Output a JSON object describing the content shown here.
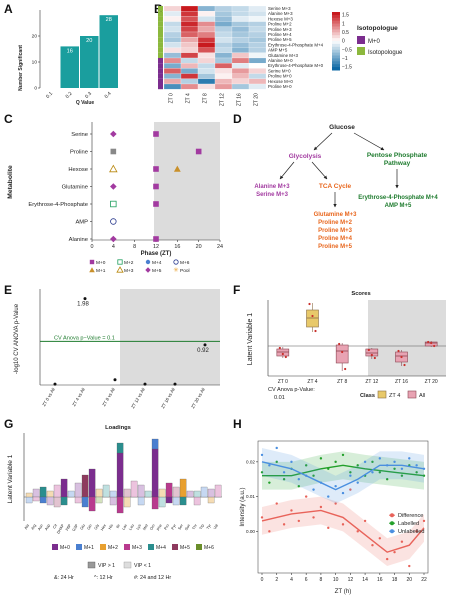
{
  "panels": {
    "A": {
      "label": "A"
    },
    "B": {
      "label": "B"
    },
    "C": {
      "label": "C"
    },
    "D": {
      "label": "D"
    },
    "E": {
      "label": "E"
    },
    "F": {
      "label": "F"
    },
    "G": {
      "label": "G"
    },
    "H": {
      "label": "H"
    }
  },
  "panelA": {
    "ylabel": "Number Significant",
    "xlabel": "Q Value",
    "categories": [
      "0.1",
      "0.2",
      "0.3",
      "0.4"
    ],
    "values": [
      0,
      16,
      20,
      28
    ],
    "bar_labels": [
      "",
      "16",
      "20",
      "28"
    ],
    "ylim": [
      0,
      30
    ],
    "yticks": [
      "0",
      "10",
      "20"
    ],
    "bar_color": "#1a9e9e"
  },
  "panelB": {
    "xlabels": [
      "ZT 0",
      "ZT 4",
      "ZT 8",
      "ZT 12",
      "ZT 16",
      "ZT 20"
    ],
    "rows": [
      "Serine M+3",
      "Alanine M+3",
      "Hexose M+3",
      "Proline M+2",
      "Proline M+3",
      "Proline M+4",
      "Proline M+5",
      "Erythrose-4-Phosphate M+4",
      "AMP M+5",
      "Glutamine M+3",
      "Alanine M+0",
      "Erythrose-4-Phosphate M+0",
      "Serine M+0",
      "Proline M+0",
      "Hexose M+0",
      "Proline M+0"
    ],
    "legend_title": "Isotopologue",
    "legend_items": [
      {
        "label": "M+0",
        "color": "#7b2d8e"
      },
      {
        "label": "Isotopologue",
        "color": "#8cb83d"
      }
    ],
    "scale_ticks": [
      "1.5",
      "1",
      "0.5",
      "0",
      "−0.5",
      "−1",
      "−1.5"
    ]
  },
  "panelC": {
    "ylabel": "Metabolite",
    "xlabel": "Phase (ZT)",
    "metabolites": [
      "Serine",
      "Proline",
      "Hexose",
      "Glutamine",
      "Erythrose-4-Phosphate",
      "AMP",
      "Alanine"
    ],
    "xticks": [
      "0",
      "4",
      "8",
      "12",
      "16",
      "20",
      "24"
    ],
    "legend": [
      "M+0",
      "M+1",
      "M+2",
      "M+3",
      "M+4",
      "M+5",
      "M+6",
      "Pool"
    ]
  },
  "panelD": {
    "glucose": "Glucose",
    "glycolysis": "Glycolysis",
    "ppp": "Pentose Phosphate Pathway",
    "alanine": "Alanine M+3",
    "serine": "Serine M+3",
    "tca": "TCA Cycle",
    "glutamine": "Glutamine M+3",
    "proline2": "Proline M+2",
    "proline3": "Proline M+3",
    "proline4": "Proline M+4",
    "proline5": "Proline M+5",
    "erythrose": "Erythrose-4-Phosphate M+4",
    "amp": "AMP M+5"
  },
  "panelE": {
    "ylabel": "-log10 CV ANOVA p-Value",
    "threshold_label": "CV Anova p−Value = 0.1",
    "categories": [
      "ZT 0 vs All",
      "ZT 4 vs All",
      "ZT 8 vs All",
      "ZT 12 vs All",
      "ZT 16 vs All",
      "ZT 20 vs All"
    ],
    "values": [
      0.02,
      1.98,
      0.12,
      0.02,
      0.02,
      0.92
    ],
    "point_labels": [
      "",
      "1.98",
      "",
      "",
      "",
      "0.92"
    ],
    "threshold": 1.0,
    "ylim": [
      0,
      2.2
    ]
  },
  "panelF": {
    "title": "Scores",
    "ylabel": "Latent Variable 1",
    "xlabels": [
      "ZT 0",
      "ZT 4",
      "ZT 8",
      "ZT 12",
      "ZT 16",
      "ZT 20"
    ],
    "footnote": "CV Anova p-Value: 0.01",
    "legend_title": "Class",
    "legend_items": [
      "ZT 4",
      "All"
    ]
  },
  "panelG": {
    "title": "Loadings",
    "ylabel": "Latent Variable 1",
    "legend": [
      "M+0",
      "M+1",
      "M+2",
      "M+3",
      "M+4",
      "M+5",
      "M+6"
    ],
    "vip_legend": [
      "VIP > 1",
      "VIP < 1"
    ],
    "footnote_24": "&: 24 Hr",
    "footnote_12": "^: 12 Hr",
    "footnote_both": "#: 24 and 12 Hr"
  },
  "panelH": {
    "ylabel": "Intensity (a.u.)",
    "xlabel": "ZT (h)",
    "xticks": [
      "0",
      "2",
      "4",
      "6",
      "8",
      "10",
      "12",
      "14",
      "16",
      "18",
      "20",
      "22"
    ],
    "yticks": [
      "0.00",
      "0.01",
      "0.02"
    ],
    "series": [
      {
        "name": "Difference",
        "color": "#e8635a"
      },
      {
        "name": "Labelled",
        "color": "#22a02a"
      },
      {
        "name": "Unlabelled",
        "color": "#4a8fe0"
      }
    ]
  },
  "colors": {
    "purple": "#a23aa0",
    "orange": "#e8661d",
    "green": "#1e7b2e",
    "gray_bg": "#dcdcdc"
  }
}
